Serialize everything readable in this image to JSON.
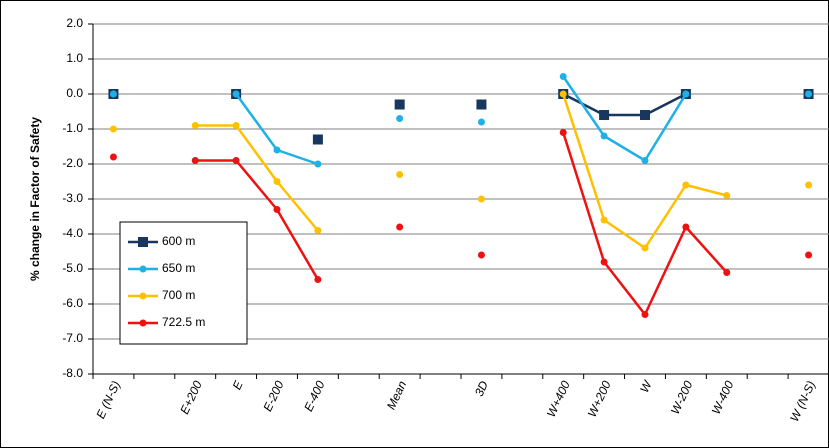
{
  "chart_data": {
    "type": "line",
    "y_label": "% change in Factor of Safety",
    "categories": [
      "E (N-S)",
      null,
      "E+200",
      "E",
      "E-200",
      "E-400",
      null,
      "Mean",
      null,
      "3D",
      null,
      "W+400",
      "W+200",
      "W",
      "W-200",
      "W-400",
      null,
      "W (N-S)"
    ],
    "series": [
      {
        "name": "600 m",
        "color": "#17375e",
        "marker": "square",
        "values": [
          0,
          null,
          null,
          0,
          null,
          -1.3,
          null,
          -0.3,
          null,
          -0.3,
          null,
          0,
          -0.6,
          -0.6,
          0,
          null,
          null,
          0
        ]
      },
      {
        "name": "650 m",
        "color": "#1fb1e6",
        "marker": "circle",
        "values": [
          0,
          null,
          null,
          0,
          -1.6,
          -2.0,
          null,
          -0.7,
          null,
          -0.8,
          null,
          0.5,
          -1.2,
          -1.9,
          0,
          null,
          null,
          0
        ]
      },
      {
        "name": "700 m",
        "color": "#ffc000",
        "marker": "circle",
        "values": [
          -1.0,
          null,
          -0.9,
          -0.9,
          -2.5,
          -3.9,
          null,
          -2.3,
          null,
          -3.0,
          null,
          0,
          -3.6,
          -4.4,
          -2.6,
          -2.9,
          null,
          -2.6
        ]
      },
      {
        "name": "722.5 m",
        "color": "#ee1111",
        "marker": "circle",
        "values": [
          -1.8,
          null,
          -1.9,
          -1.9,
          -3.3,
          -5.3,
          null,
          -3.8,
          null,
          -4.6,
          null,
          -1.1,
          -4.8,
          -6.3,
          -3.8,
          -5.1,
          null,
          -4.6
        ]
      }
    ],
    "ylim": [
      -8,
      2
    ],
    "yticks": [
      {
        "value": -8,
        "label": "-8.0"
      },
      {
        "value": -7,
        "label": "-7.0"
      },
      {
        "value": -6,
        "label": "-6.0"
      },
      {
        "value": -5,
        "label": "-5.0"
      },
      {
        "value": -4,
        "label": "-4.0"
      },
      {
        "value": -3,
        "label": "-3.0"
      },
      {
        "value": -2,
        "label": "-2.0"
      },
      {
        "value": -1,
        "label": "-1.0"
      },
      {
        "value": 0,
        "label": "0.0"
      },
      {
        "value": 1,
        "label": "1.0"
      },
      {
        "value": 2,
        "label": "2.0"
      }
    ],
    "grid": true,
    "legend": "lower left"
  }
}
